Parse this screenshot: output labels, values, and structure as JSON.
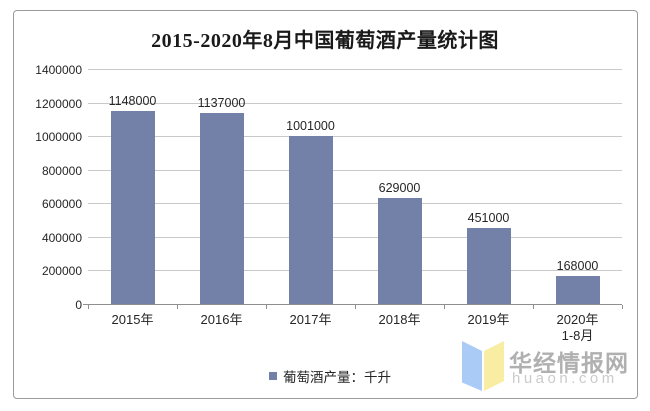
{
  "title": "2015-2020年8月中国葡萄酒产量统计图",
  "chart_data": {
    "type": "bar",
    "title": "2015-2020年8月中国葡萄酒产量统计图",
    "categories": [
      "2015年",
      "2016年",
      "2017年",
      "2018年",
      "2019年",
      "2020年\n1-8月"
    ],
    "values": [
      1148000,
      1137000,
      1001000,
      629000,
      451000,
      168000
    ],
    "data_labels": [
      "1148000",
      "1137000",
      "1001000",
      "629000",
      "451000",
      "168000"
    ],
    "xlabel": "",
    "ylabel": "",
    "ylim": [
      0,
      1400000
    ],
    "ytick_step": 200000,
    "ytick_labels": [
      "0",
      "200000",
      "400000",
      "600000",
      "800000",
      "1000000",
      "1200000",
      "1400000"
    ],
    "grid": true,
    "legend_position": "bottom",
    "bar_color": "#7380a8"
  },
  "legend": {
    "label": "葡萄酒产量：千升"
  },
  "watermark": {
    "name": "华经情报网",
    "domain": "huaon.com"
  },
  "colors": {
    "bar": "#7380a8",
    "gridline": "#c9c9c9",
    "axis": "#8f8f8f",
    "border": "#9b9b9b",
    "text": "#262626",
    "watermark_name": "#a3a3a3",
    "watermark_domain": "#cbcbcb",
    "logo_blue": "#a9cbf5",
    "logo_yellow": "#f8eda2"
  }
}
